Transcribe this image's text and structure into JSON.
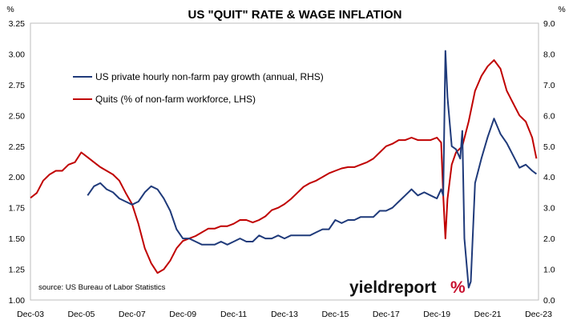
{
  "chart_data": {
    "type": "line",
    "title": "US \"QUIT\" RATE & WAGE INFLATION",
    "left_unit": "%",
    "right_unit": "%",
    "xlabel": "",
    "x_ticks": [
      "Dec-03",
      "Dec-05",
      "Dec-07",
      "Dec-09",
      "Dec-11",
      "Dec-13",
      "Dec-15",
      "Dec-17",
      "Dec-19",
      "Dec-21",
      "Dec-23"
    ],
    "xlim": [
      "2003-12",
      "2023-12"
    ],
    "ylim_left": [
      1.0,
      3.25
    ],
    "ylim_right": [
      0.0,
      9.0
    ],
    "y_left_ticks": [
      "1.00",
      "1.25",
      "1.50",
      "1.75",
      "2.00",
      "2.25",
      "2.50",
      "2.75",
      "3.00",
      "3.25"
    ],
    "y_right_ticks": [
      "0.0",
      "1.0",
      "2.0",
      "3.0",
      "4.0",
      "5.0",
      "6.0",
      "7.0",
      "8.0",
      "9.0"
    ],
    "grid": false,
    "legend_placement": "top-left",
    "source_note": "source: US Bureau of Labor Statistics",
    "watermark": "yieldreport %",
    "series": [
      {
        "name": "Quits (% of non-farm workforce, LHS)",
        "axis": "left",
        "color": "#c00000",
        "points": [
          [
            "2003-12",
            1.83
          ],
          [
            "2004-03",
            1.87
          ],
          [
            "2004-06",
            1.97
          ],
          [
            "2004-09",
            2.02
          ],
          [
            "2004-12",
            2.05
          ],
          [
            "2005-03",
            2.05
          ],
          [
            "2005-06",
            2.1
          ],
          [
            "2005-09",
            2.12
          ],
          [
            "2005-12",
            2.2
          ],
          [
            "2006-03",
            2.16
          ],
          [
            "2006-06",
            2.12
          ],
          [
            "2006-09",
            2.08
          ],
          [
            "2006-12",
            2.05
          ],
          [
            "2007-03",
            2.02
          ],
          [
            "2007-06",
            1.97
          ],
          [
            "2007-09",
            1.87
          ],
          [
            "2007-12",
            1.78
          ],
          [
            "2008-03",
            1.62
          ],
          [
            "2008-06",
            1.42
          ],
          [
            "2008-09",
            1.3
          ],
          [
            "2008-12",
            1.22
          ],
          [
            "2009-03",
            1.25
          ],
          [
            "2009-06",
            1.32
          ],
          [
            "2009-09",
            1.42
          ],
          [
            "2009-12",
            1.48
          ],
          [
            "2010-03",
            1.5
          ],
          [
            "2010-06",
            1.52
          ],
          [
            "2010-09",
            1.55
          ],
          [
            "2010-12",
            1.58
          ],
          [
            "2011-03",
            1.58
          ],
          [
            "2011-06",
            1.6
          ],
          [
            "2011-09",
            1.6
          ],
          [
            "2011-12",
            1.62
          ],
          [
            "2012-03",
            1.65
          ],
          [
            "2012-06",
            1.65
          ],
          [
            "2012-09",
            1.63
          ],
          [
            "2012-12",
            1.65
          ],
          [
            "2013-03",
            1.68
          ],
          [
            "2013-06",
            1.73
          ],
          [
            "2013-09",
            1.75
          ],
          [
            "2013-12",
            1.78
          ],
          [
            "2014-03",
            1.82
          ],
          [
            "2014-06",
            1.87
          ],
          [
            "2014-09",
            1.92
          ],
          [
            "2014-12",
            1.95
          ],
          [
            "2015-03",
            1.97
          ],
          [
            "2015-06",
            2.0
          ],
          [
            "2015-09",
            2.03
          ],
          [
            "2015-12",
            2.05
          ],
          [
            "2016-03",
            2.07
          ],
          [
            "2016-06",
            2.08
          ],
          [
            "2016-09",
            2.08
          ],
          [
            "2016-12",
            2.1
          ],
          [
            "2017-03",
            2.12
          ],
          [
            "2017-06",
            2.15
          ],
          [
            "2017-09",
            2.2
          ],
          [
            "2017-12",
            2.25
          ],
          [
            "2018-03",
            2.27
          ],
          [
            "2018-06",
            2.3
          ],
          [
            "2018-09",
            2.3
          ],
          [
            "2018-12",
            2.32
          ],
          [
            "2019-03",
            2.3
          ],
          [
            "2019-06",
            2.3
          ],
          [
            "2019-09",
            2.3
          ],
          [
            "2019-12",
            2.32
          ],
          [
            "2020-02",
            2.28
          ],
          [
            "2020-03",
            1.85
          ],
          [
            "2020-04",
            1.5
          ],
          [
            "2020-05",
            1.82
          ],
          [
            "2020-07",
            2.1
          ],
          [
            "2020-09",
            2.2
          ],
          [
            "2020-12",
            2.25
          ],
          [
            "2021-03",
            2.45
          ],
          [
            "2021-06",
            2.7
          ],
          [
            "2021-09",
            2.82
          ],
          [
            "2021-12",
            2.9
          ],
          [
            "2022-03",
            2.95
          ],
          [
            "2022-06",
            2.88
          ],
          [
            "2022-09",
            2.7
          ],
          [
            "2022-12",
            2.6
          ],
          [
            "2023-03",
            2.5
          ],
          [
            "2023-06",
            2.45
          ],
          [
            "2023-09",
            2.32
          ],
          [
            "2023-11",
            2.15
          ]
        ]
      },
      {
        "name": "US private hourly non-farm pay growth (annual, RHS)",
        "axis": "right",
        "color": "#1f3a7a",
        "points": [
          [
            "2006-03",
            3.4
          ],
          [
            "2006-06",
            3.7
          ],
          [
            "2006-09",
            3.8
          ],
          [
            "2006-12",
            3.6
          ],
          [
            "2007-03",
            3.5
          ],
          [
            "2007-06",
            3.3
          ],
          [
            "2007-09",
            3.2
          ],
          [
            "2007-12",
            3.1
          ],
          [
            "2008-03",
            3.2
          ],
          [
            "2008-06",
            3.5
          ],
          [
            "2008-09",
            3.7
          ],
          [
            "2008-12",
            3.6
          ],
          [
            "2009-03",
            3.3
          ],
          [
            "2009-06",
            2.9
          ],
          [
            "2009-09",
            2.3
          ],
          [
            "2009-12",
            2.0
          ],
          [
            "2010-03",
            2.0
          ],
          [
            "2010-06",
            1.9
          ],
          [
            "2010-09",
            1.8
          ],
          [
            "2010-12",
            1.8
          ],
          [
            "2011-03",
            1.8
          ],
          [
            "2011-06",
            1.9
          ],
          [
            "2011-09",
            1.8
          ],
          [
            "2011-12",
            1.9
          ],
          [
            "2012-03",
            2.0
          ],
          [
            "2012-06",
            1.9
          ],
          [
            "2012-09",
            1.9
          ],
          [
            "2012-12",
            2.1
          ],
          [
            "2013-03",
            2.0
          ],
          [
            "2013-06",
            2.0
          ],
          [
            "2013-09",
            2.1
          ],
          [
            "2013-12",
            2.0
          ],
          [
            "2014-03",
            2.1
          ],
          [
            "2014-06",
            2.1
          ],
          [
            "2014-09",
            2.1
          ],
          [
            "2014-12",
            2.1
          ],
          [
            "2015-03",
            2.2
          ],
          [
            "2015-06",
            2.3
          ],
          [
            "2015-09",
            2.3
          ],
          [
            "2015-12",
            2.6
          ],
          [
            "2016-03",
            2.5
          ],
          [
            "2016-06",
            2.6
          ],
          [
            "2016-09",
            2.6
          ],
          [
            "2016-12",
            2.7
          ],
          [
            "2017-03",
            2.7
          ],
          [
            "2017-06",
            2.7
          ],
          [
            "2017-09",
            2.9
          ],
          [
            "2017-12",
            2.9
          ],
          [
            "2018-03",
            3.0
          ],
          [
            "2018-06",
            3.2
          ],
          [
            "2018-09",
            3.4
          ],
          [
            "2018-12",
            3.6
          ],
          [
            "2019-03",
            3.4
          ],
          [
            "2019-06",
            3.5
          ],
          [
            "2019-09",
            3.4
          ],
          [
            "2019-12",
            3.3
          ],
          [
            "2020-02",
            3.6
          ],
          [
            "2020-03",
            3.4
          ],
          [
            "2020-04",
            8.1
          ],
          [
            "2020-05",
            6.6
          ],
          [
            "2020-07",
            5.0
          ],
          [
            "2020-09",
            4.9
          ],
          [
            "2020-11",
            4.6
          ],
          [
            "2020-12",
            5.5
          ],
          [
            "2021-01",
            2.0
          ],
          [
            "2021-03",
            0.4
          ],
          [
            "2021-04",
            0.6
          ],
          [
            "2021-06",
            3.8
          ],
          [
            "2021-09",
            4.6
          ],
          [
            "2021-12",
            5.3
          ],
          [
            "2022-03",
            5.9
          ],
          [
            "2022-06",
            5.4
          ],
          [
            "2022-09",
            5.1
          ],
          [
            "2022-12",
            4.7
          ],
          [
            "2023-03",
            4.3
          ],
          [
            "2023-06",
            4.4
          ],
          [
            "2023-09",
            4.2
          ],
          [
            "2023-11",
            4.1
          ]
        ]
      }
    ]
  }
}
